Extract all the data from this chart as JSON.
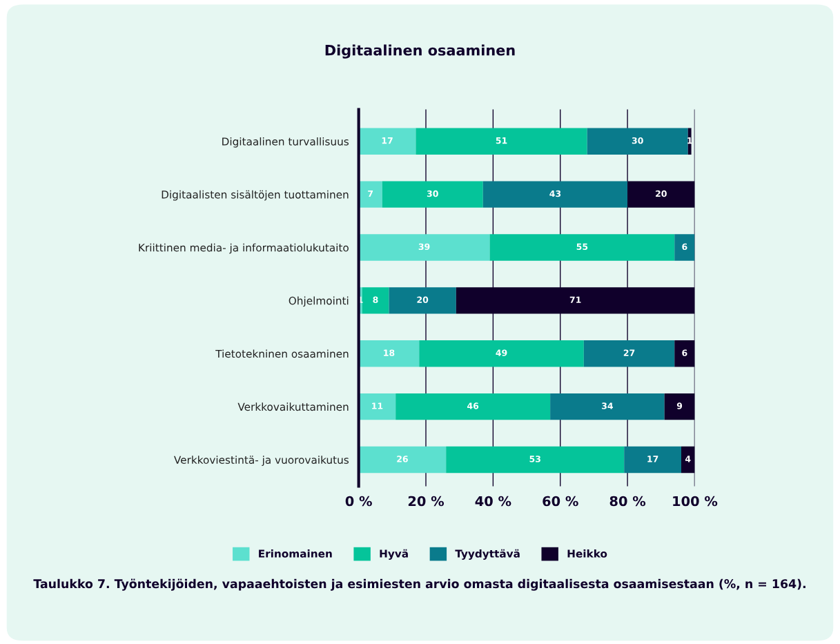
{
  "chart_data": {
    "type": "bar",
    "orientation": "horizontal",
    "stacked": true,
    "title": "Digitaalinen osaaminen",
    "categories": [
      "Digitaalinen turvallisuus",
      "Digitaalisten sisältöjen tuottaminen",
      "Kriittinen media- ja informaatiolukutaito",
      "Ohjelmointi",
      "Tietotekninen osaaminen",
      "Verkkovaikuttaminen",
      "Verkkoviestintä- ja vuorovaikutus"
    ],
    "series": [
      {
        "name": "Erinomainen",
        "color": "#5ce0cf",
        "values": [
          17,
          7,
          39,
          1,
          18,
          11,
          26
        ]
      },
      {
        "name": "Hyvä",
        "color": "#05c49a",
        "values": [
          51,
          30,
          55,
          8,
          49,
          46,
          53
        ]
      },
      {
        "name": "Tyydyttävä",
        "color": "#0a7b8c",
        "values": [
          30,
          43,
          6,
          20,
          27,
          34,
          17
        ]
      },
      {
        "name": "Heikko",
        "color": "#10002b",
        "values": [
          1,
          20,
          null,
          71,
          6,
          9,
          4
        ]
      }
    ],
    "xlim": [
      0,
      100
    ],
    "xticks": [
      {
        "value": 0,
        "label": "0 %"
      },
      {
        "value": 20,
        "label": "20 %"
      },
      {
        "value": 40,
        "label": "40 %"
      },
      {
        "value": 60,
        "label": "60 %"
      },
      {
        "value": 80,
        "label": "80 %"
      },
      {
        "value": 100,
        "label": "100 %"
      }
    ],
    "grid": "x",
    "legend": "bottom",
    "data_labels": true,
    "annotations": [
      "Taulukko 7. Työntekijöiden, vapaaehtoisten ja esimiesten arvio omasta digitaalisesta osaamisestaan (%, n = 164)."
    ]
  }
}
